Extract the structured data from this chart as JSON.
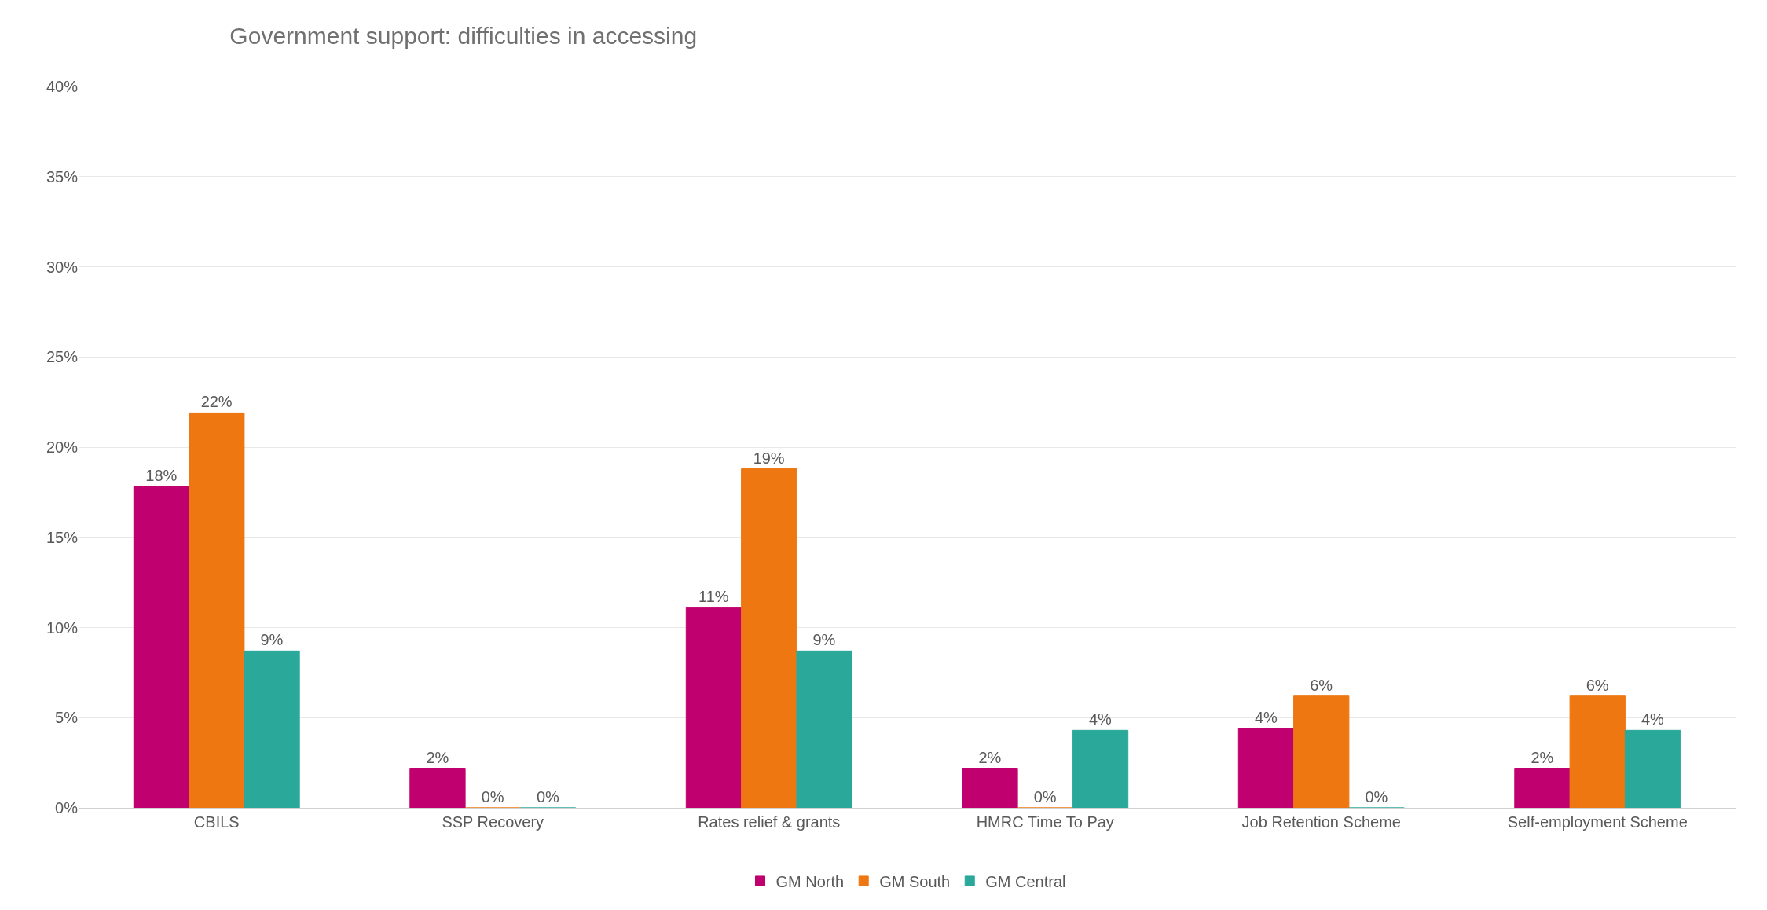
{
  "chart_data": {
    "type": "bar",
    "title": "Government support: difficulties in accessing",
    "categories": [
      "CBILS",
      "SSP Recovery",
      "Rates relief & grants",
      "HMRC Time To Pay",
      "Job Retention Scheme",
      "Self-employment Scheme"
    ],
    "series": [
      {
        "name": "GM North",
        "color": "#c0006f",
        "values": [
          17.8,
          2.2,
          11.1,
          2.2,
          4.4,
          2.2
        ],
        "value_labels": [
          "18%",
          "2%",
          "11%",
          "2%",
          "4%",
          "2%"
        ]
      },
      {
        "name": "GM South",
        "color": "#ee7711",
        "values": [
          21.9,
          0,
          18.8,
          0,
          6.2,
          6.2
        ],
        "value_labels": [
          "22%",
          "0%",
          "19%",
          "0%",
          "6%",
          "6%"
        ]
      },
      {
        "name": "GM Central",
        "color": "#2aa89a",
        "values": [
          8.7,
          0,
          8.7,
          4.3,
          0,
          4.3
        ],
        "value_labels": [
          "9%",
          "0%",
          "9%",
          "4%",
          "0%",
          "4%"
        ]
      }
    ],
    "ylim": [
      0,
      40
    ],
    "yticks": [
      {
        "value": 0,
        "label": "0%"
      },
      {
        "value": 5,
        "label": "5%"
      },
      {
        "value": 10,
        "label": "10%"
      },
      {
        "value": 15,
        "label": "15%"
      },
      {
        "value": 20,
        "label": "20%"
      },
      {
        "value": 25,
        "label": "25%"
      },
      {
        "value": 30,
        "label": "30%"
      },
      {
        "value": 35,
        "label": "35%"
      },
      {
        "value": 40,
        "label": "40%"
      }
    ],
    "grid": "y",
    "legend": "bottom"
  }
}
